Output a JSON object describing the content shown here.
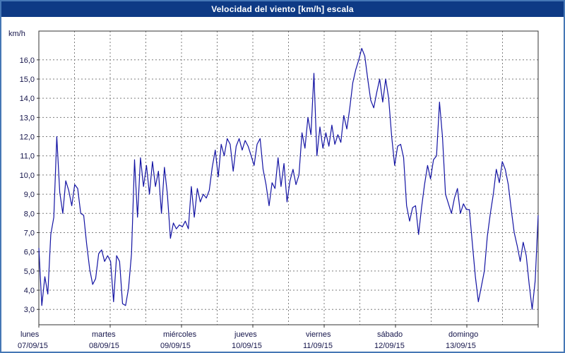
{
  "window": {
    "border_color": "#4577b5",
    "background": "#ffffff"
  },
  "title_bar": {
    "text": "Velocidad del viento [km/h] escala",
    "background": "#0e3a85",
    "text_color": "#ffffff"
  },
  "chart_data": {
    "type": "line",
    "title": "Velocidad del viento [km/h] escala",
    "ylabel": "km/h",
    "ylim": [
      2.2,
      17.5
    ],
    "yticks": [
      3,
      4,
      5,
      6,
      7,
      8,
      9,
      10,
      11,
      12,
      13,
      14,
      15,
      16
    ],
    "ytick_labels": [
      "3,0",
      "4,0",
      "5,0",
      "6,0",
      "7,0",
      "8,0",
      "9,0",
      "10,0",
      "11,0",
      "12,0",
      "13,0",
      "14,0",
      "15,0",
      "16,0"
    ],
    "grid": {
      "style": "dashed",
      "color": "#7d7d7d"
    },
    "text_color": "#14144a",
    "axis_color": "#333333",
    "x_axis": {
      "points_per_day": 24,
      "grid_divisions_per_day": 2,
      "days": [
        {
          "name": "lunes",
          "date": "07/09/15"
        },
        {
          "name": "martes",
          "date": "08/09/15"
        },
        {
          "name": "miércoles",
          "date": "09/09/15"
        },
        {
          "name": "jueves",
          "date": "10/09/15"
        },
        {
          "name": "viernes",
          "date": "11/09/15"
        },
        {
          "name": "sábado",
          "date": "12/09/15"
        },
        {
          "name": "domingo",
          "date": "13/09/15"
        }
      ]
    },
    "series": [
      {
        "name": "Velocidad del viento",
        "color": "#1313a3",
        "values": [
          6.2,
          3.2,
          4.7,
          3.8,
          6.9,
          7.8,
          12.0,
          9.1,
          8.0,
          9.7,
          9.2,
          8.4,
          9.5,
          9.3,
          8.0,
          7.9,
          6.4,
          5.1,
          4.3,
          4.6,
          5.9,
          6.1,
          5.5,
          5.8,
          5.5,
          3.4,
          5.8,
          5.5,
          3.3,
          3.2,
          4.1,
          5.9,
          10.8,
          7.8,
          10.9,
          9.4,
          10.5,
          9.0,
          10.7,
          9.4,
          10.2,
          8.0,
          10.4,
          9.0,
          6.7,
          7.5,
          7.2,
          7.4,
          7.3,
          7.6,
          7.2,
          9.4,
          7.8,
          9.3,
          8.6,
          9.0,
          8.8,
          9.2,
          10.4,
          11.3,
          9.9,
          11.6,
          11.0,
          11.9,
          11.6,
          10.2,
          11.5,
          11.9,
          11.3,
          11.8,
          11.5,
          11.0,
          10.5,
          11.6,
          11.9,
          10.3,
          9.5,
          8.4,
          9.6,
          9.3,
          10.9,
          9.4,
          10.6,
          8.6,
          9.7,
          10.3,
          9.5,
          10.0,
          12.2,
          11.4,
          13.0,
          12.1,
          15.3,
          11.0,
          12.5,
          11.4,
          12.2,
          11.5,
          12.6,
          11.6,
          12.1,
          11.7,
          13.1,
          12.4,
          13.5,
          14.8,
          15.5,
          16.0,
          16.6,
          16.2,
          15.0,
          13.9,
          13.5,
          14.3,
          15.0,
          13.8,
          15.0,
          14.0,
          12.0,
          10.5,
          11.5,
          11.6,
          10.9,
          8.4,
          7.6,
          8.3,
          8.4,
          6.9,
          8.3,
          9.5,
          10.5,
          9.8,
          10.8,
          11.0,
          13.8,
          12.0,
          9.0,
          8.5,
          8.0,
          8.8,
          9.3,
          8.0,
          8.5,
          8.2,
          8.2,
          6.4,
          4.7,
          3.4,
          4.2,
          5.0,
          6.8,
          8.0,
          9.0,
          10.3,
          9.6,
          10.7,
          10.3,
          9.5,
          8.2,
          7.0,
          6.3,
          5.5,
          6.5,
          5.8,
          4.3,
          3.0,
          4.5,
          7.9
        ]
      }
    ]
  }
}
